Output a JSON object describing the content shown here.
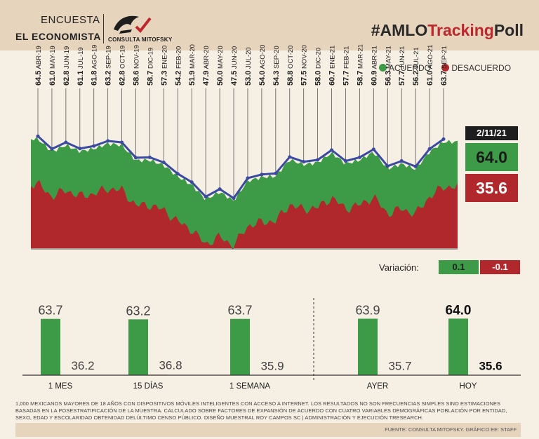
{
  "header": {
    "brand_line1": "ENCUESTA",
    "brand_line2": "EL ECONOMISTA",
    "logo_text": "CONSULTA MITOFSKY",
    "hashtag_prefix": "#AMLO",
    "hashtag_mid": "Tracking",
    "hashtag_suffix": "Poll"
  },
  "legend": {
    "agree": "ACUERDO",
    "disagree": "DESACUERDO"
  },
  "latest": {
    "date": "2/11/21",
    "agree": "64.0",
    "disagree": "35.6"
  },
  "variation": {
    "label": "Variación:",
    "agree": "0.1",
    "disagree": "-0.1"
  },
  "colors": {
    "agree": "#3d9a46",
    "disagree": "#b0282c",
    "line": "#3b4aa0",
    "background": "#f6efe4",
    "band": "#e6d4bd"
  },
  "footnote": "1,000 MEXICANOS MAYORES DE 18 AÑOS CON DISPOSITIVOS MÓVILES INTELIGENTES CON ACCESO A INTERNET. LOS RESULTADOS NO SON FRECUENCIAS SIMPLES SINO ESTIMACIONES BASADAS EN LA POSESTRATIFICACIÓN DE LA MUESTRA. CALCULADO SOBRE FACTORES DE EXPANSIÓN DE ACUERDO CON CUATRO VARIABLES DEMOGRÁFICAS POBLACIÓN POR ENTIDAD, SEXO, EDAD Y ESCOLARIDAD OBTENIDAD DELÚLTIMO CENSO PÚBLICO. DISEÑO MUESTRAL ROY CAMPOS SC | ADMINISTRACIÓN Y EJECUCIÓN TRESEARCH.",
  "source": "FUENTE: CONSULTA MITOFSKY. GRÁFICO EE: STAFF",
  "chart_data": [
    {
      "type": "line",
      "series": [
        {
          "name": "ACUERDO",
          "values": [
            64.5,
            61.0,
            62.8,
            61.1,
            61.8,
            63.2,
            62.8,
            58.6,
            58.7,
            57.3,
            54.2,
            51.9,
            47.9,
            50.0,
            47.5,
            53.0,
            54.0,
            54.3,
            58.8,
            57.5,
            58.0,
            60.7,
            57.7,
            58.7,
            60.9,
            56.3,
            57.7,
            56.2,
            61.0,
            63.7
          ]
        }
      ],
      "labels": [
        "ABR-19",
        "MAY-19",
        "JUN-19",
        "JUL-19",
        "AGO-19",
        "SEP-19",
        "OCT-19",
        "NOV-19",
        "DIC-19",
        "ENE-20",
        "FEB-20",
        "MAR-20",
        "ABR-20",
        "MAY-20",
        "JUN-20",
        "JUL-20",
        "AGO-20",
        "SEP-20",
        "OCT-20",
        "NOV-20",
        "DIC-20",
        "ENE-21",
        "FEB-21",
        "MAR-21",
        "ABR-21",
        "MAY-21",
        "JUN-21",
        "JUL-21",
        "AGO-21",
        "SEP-21"
      ],
      "legend": [
        "ACUERDO",
        "DESACUERDO"
      ],
      "legend_placement": "top-right"
    },
    {
      "type": "bar",
      "categories": [
        "1 MES",
        "15 DÍAS",
        "1 SEMANA",
        "AYER",
        "HOY"
      ],
      "series": [
        {
          "name": "ACUERDO",
          "values": [
            63.7,
            63.2,
            63.7,
            63.9,
            64.0
          ],
          "labels": [
            "63.7",
            "63.2",
            "63.7",
            "63.9",
            "64.0"
          ]
        },
        {
          "name": "DESACUERDO",
          "values": [
            36.2,
            36.8,
            35.9,
            35.7,
            35.6
          ],
          "labels": [
            "36.2",
            "36.8",
            "35.9",
            "35.7",
            "35.6"
          ]
        }
      ]
    }
  ]
}
